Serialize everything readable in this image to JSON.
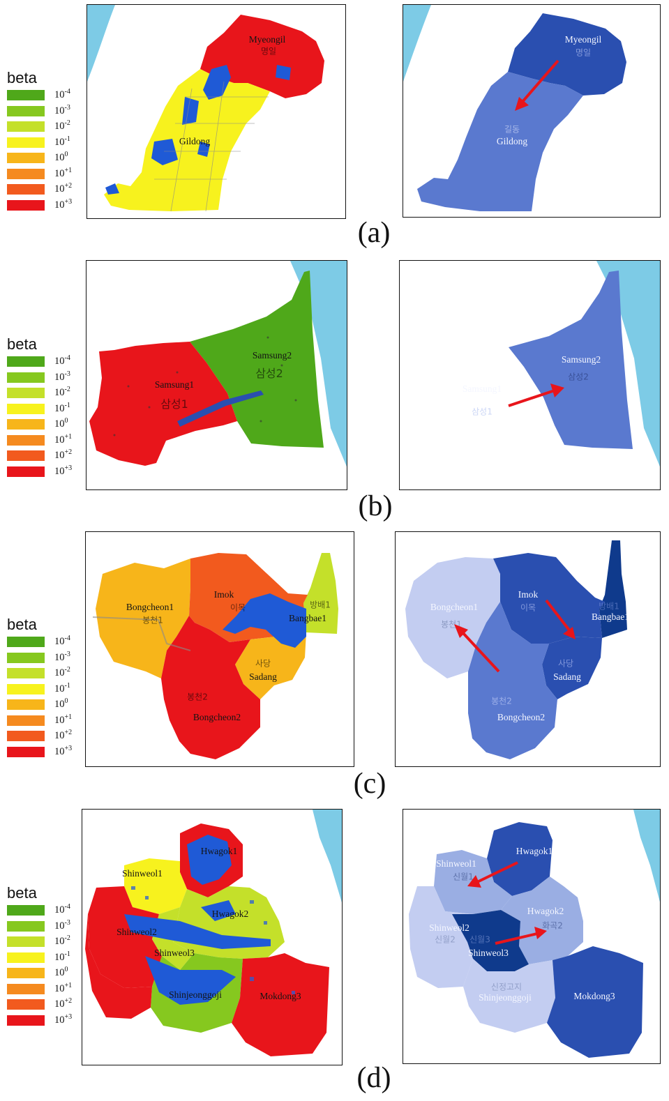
{
  "legend": {
    "title": "beta",
    "items": [
      {
        "base": "10",
        "exp": "-4",
        "color": "#4fa81a"
      },
      {
        "base": "10",
        "exp": "-3",
        "color": "#86c81f"
      },
      {
        "base": "10",
        "exp": "-2",
        "color": "#c4e02a"
      },
      {
        "base": "10",
        "exp": "-1",
        "color": "#f7f21e"
      },
      {
        "base": "10",
        "exp": "0",
        "color": "#f7b51a"
      },
      {
        "base": "10",
        "exp": "+1",
        "color": "#f58a1f"
      },
      {
        "base": "10",
        "exp": "+2",
        "color": "#f25a1e"
      },
      {
        "base": "10",
        "exp": "+3",
        "color": "#e8151b"
      }
    ]
  },
  "colors": {
    "water": "#7dcbe6",
    "flood": "#1f5ad6",
    "red": "#e8151b",
    "redorange": "#f25a1e",
    "orange": "#f7b51a",
    "yellow": "#f7f21e",
    "yellowgreen": "#c4e02a",
    "lightgreen": "#86c81f",
    "green": "#4fa81a",
    "navy": "#0f3a8c",
    "darkblue": "#2a4fb0",
    "midblue": "#5a79cf",
    "lightblue": "#9aaee3",
    "paleblue": "#c3cdf1",
    "arrow": "#e8151b"
  },
  "panels": [
    {
      "caption": "(a)",
      "left_labels": [
        {
          "text": "Myeongil",
          "hangul": "명일"
        },
        {
          "text": "Gildong",
          "hangul": ""
        }
      ],
      "right_labels": [
        {
          "text": "Myeongil",
          "hangul": "명일"
        },
        {
          "text": "Gildong",
          "hangul": "길동"
        }
      ]
    },
    {
      "caption": "(b)",
      "left_labels": [
        {
          "text": "Samsung1",
          "hangul": "삼성1"
        },
        {
          "text": "Samsung2",
          "hangul": "삼성2"
        }
      ],
      "right_labels": [
        {
          "text": "Samsung1",
          "hangul": "삼성1"
        },
        {
          "text": "Samsung2",
          "hangul": "삼성2"
        }
      ]
    },
    {
      "caption": "(c)",
      "left_labels": [
        {
          "text": "Bongcheon1",
          "hangul": "봉천1"
        },
        {
          "text": "Imok",
          "hangul": "이목"
        },
        {
          "text": "Bangbae1",
          "hangul": "방배1"
        },
        {
          "text": "Sadang",
          "hangul": "사당"
        },
        {
          "text": "Bongcheon2",
          "hangul": "봉천2"
        }
      ],
      "right_labels": [
        {
          "text": "Bongcheon1",
          "hangul": "봉천1"
        },
        {
          "text": "Imok",
          "hangul": "이목"
        },
        {
          "text": "Bangbae1",
          "hangul": "방배1"
        },
        {
          "text": "Sadang",
          "hangul": "사당"
        },
        {
          "text": "Bongcheon2",
          "hangul": "봉천2"
        }
      ]
    },
    {
      "caption": "(d)",
      "left_labels": [
        {
          "text": "Hwagok1",
          "hangul": ""
        },
        {
          "text": "Shinweol1",
          "hangul": ""
        },
        {
          "text": "Hwagok2",
          "hangul": ""
        },
        {
          "text": "Shinweol2",
          "hangul": ""
        },
        {
          "text": "Shinweol3",
          "hangul": ""
        },
        {
          "text": "Shinjeonggoji",
          "hangul": ""
        },
        {
          "text": "Mokdong3",
          "hangul": ""
        }
      ],
      "right_labels": [
        {
          "text": "Hwagok1",
          "hangul": ""
        },
        {
          "text": "Shinweol1",
          "hangul": "신월1"
        },
        {
          "text": "Hwagok2",
          "hangul": "화곡2"
        },
        {
          "text": "Shinweol2",
          "hangul": "신월2"
        },
        {
          "text": "Shinweol3",
          "hangul": "신월3"
        },
        {
          "text": "Shinjeonggoji",
          "hangul": "신정고지"
        },
        {
          "text": "Mokdong3",
          "hangul": ""
        }
      ]
    }
  ]
}
